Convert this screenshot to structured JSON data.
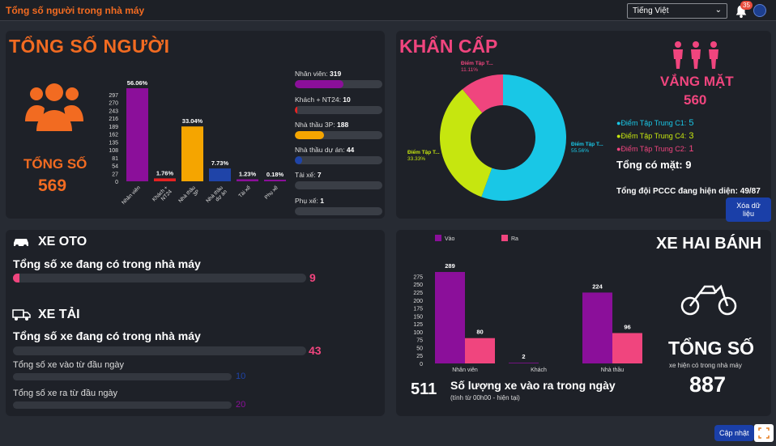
{
  "header": {
    "title": "Tổng số người trong nhà máy",
    "language": "Tiếng Việt",
    "notification_count": "35"
  },
  "people_panel": {
    "title": "TỔNG SỐ NGƯỜI",
    "total_label": "TỔNG SỐ",
    "total_value": "569",
    "list": [
      {
        "label": "Nhân viên: ",
        "value": "319",
        "fraction": 0.56,
        "color": "#8b0f9a"
      },
      {
        "label": "Khách + NT24: ",
        "value": "10",
        "fraction": 0.02,
        "color": "#e62222"
      },
      {
        "label": "Nhà thầu 3P: ",
        "value": "188",
        "fraction": 0.33,
        "color": "#f5a500"
      },
      {
        "label": "Nhà thầu dự án: ",
        "value": "44",
        "fraction": 0.08,
        "color": "#1f44a8"
      },
      {
        "label": "Tài xế: ",
        "value": "7",
        "fraction": 0.0,
        "color": "#8b0f9a"
      },
      {
        "label": "Phụ xế: ",
        "value": "1",
        "fraction": 0.0,
        "color": "#8b0f9a"
      }
    ]
  },
  "emergency_panel": {
    "title": "KHẨN CẤP",
    "absent_label": "VẮNG MẶT",
    "absent_value": "560",
    "legend": [
      {
        "label": "Điểm Tập Trung C1:",
        "value": "5",
        "color": "#19c7e6"
      },
      {
        "label": "Điểm Tập Trung C4:",
        "value": "3",
        "color": "#c6e60f"
      },
      {
        "label": "Điểm Tập Trung C2:",
        "value": "1",
        "color": "#f0457e"
      }
    ],
    "present_text": "Tổng có mặt: 9",
    "pccc_text": "Tổng đội PCCC đang hiện diện: 49/87",
    "clear_button": "Xóa dữ liệu"
  },
  "car_panel": {
    "oto_title": "XE OTO",
    "oto_sub": "Tổng số xe đang có trong nhà máy",
    "oto_value": "9",
    "truck_title": "XE TẢI",
    "truck_sub": "Tổng số xe đang có trong nhà máy",
    "truck_value": "43",
    "truck_in_label": "Tổng số xe vào từ đầu ngày",
    "truck_in_value": "10",
    "truck_out_label": "Tổng số xe ra từ đầu ngày",
    "truck_out_value": "20"
  },
  "bike_panel": {
    "title": "XE HAI BÁNH",
    "total_label": "TỔNG SỐ",
    "total_sub": "xe hiện có trong nhà máy",
    "total_value": "887",
    "inout_value": "511",
    "inout_label": "Số lượng xe vào ra trong ngày",
    "inout_sub": "(tính từ 00h00 - hiện tại)"
  },
  "footer": {
    "update_button": "Cập nhật"
  },
  "colors": {
    "orange": "#f26b21",
    "pink": "#f0457e",
    "purple": "#8b0f9a",
    "cyan": "#19c7e6",
    "lime": "#c6e60f"
  },
  "chart_data": [
    {
      "type": "bar",
      "categories": [
        "Nhân viên",
        "Khách + NT24",
        "Nhà thầu 3P",
        "Nhà thầu dự án",
        "Tài xế",
        "Phụ xế"
      ],
      "values": [
        319,
        10,
        188,
        44,
        7,
        1
      ],
      "data_labels": [
        "56.06%",
        "1.76%",
        "33.04%",
        "7.73%",
        "1.23%",
        "0.18%"
      ],
      "colors": [
        "#8b0f9a",
        "#e62222",
        "#f5a500",
        "#1f44a8",
        "#8b0f9a",
        "#8b0f9a"
      ],
      "yticks": [
        0,
        27,
        54,
        81,
        108,
        135,
        162,
        189,
        216,
        243,
        270,
        297
      ],
      "ylim": [
        0,
        319
      ]
    },
    {
      "type": "pie",
      "labels": [
        "Điểm Tập T...",
        "Điểm Tập T...",
        "Điểm Tập T..."
      ],
      "values": [
        55.56,
        33.33,
        11.11
      ],
      "pct_labels": [
        "55.56%",
        "33.33%",
        "11.11%"
      ],
      "colors": [
        "#19c7e6",
        "#c6e60f",
        "#f0457e"
      ]
    },
    {
      "type": "bar",
      "categories": [
        "Nhân viên",
        "Khách",
        "Nhà thầu"
      ],
      "series": [
        {
          "name": "Vào",
          "values": [
            289,
            2,
            224
          ],
          "color": "#8b0f9a"
        },
        {
          "name": "Ra",
          "values": [
            80,
            0,
            96
          ],
          "color": "#f0457e"
        }
      ],
      "data_labels": [
        "289",
        "80",
        "2",
        "",
        "224",
        "96"
      ],
      "yticks": [
        0,
        25,
        50,
        75,
        100,
        125,
        150,
        175,
        200,
        225,
        250,
        275
      ],
      "ylim": [
        0,
        289
      ]
    }
  ]
}
